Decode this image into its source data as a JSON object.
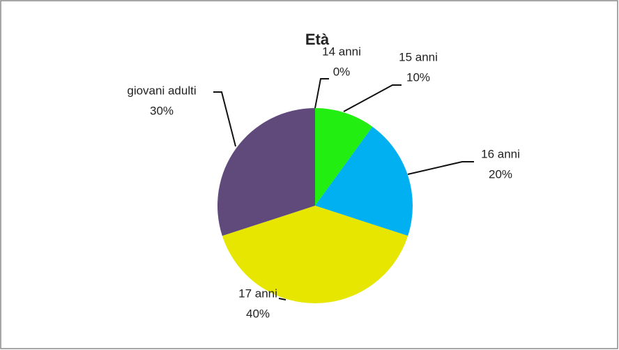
{
  "chart_data": {
    "type": "pie",
    "title": "Età",
    "categories": [
      "14 anni",
      "15 anni",
      "16 anni",
      "17 anni",
      "giovani adulti"
    ],
    "values": [
      0,
      10,
      20,
      40,
      30
    ],
    "value_labels": [
      "0%",
      "10%",
      "20%",
      "40%",
      "30%"
    ],
    "colors": [
      "#ff0000",
      "#22ee11",
      "#00b0f0",
      "#e6e600",
      "#604a7b"
    ]
  }
}
